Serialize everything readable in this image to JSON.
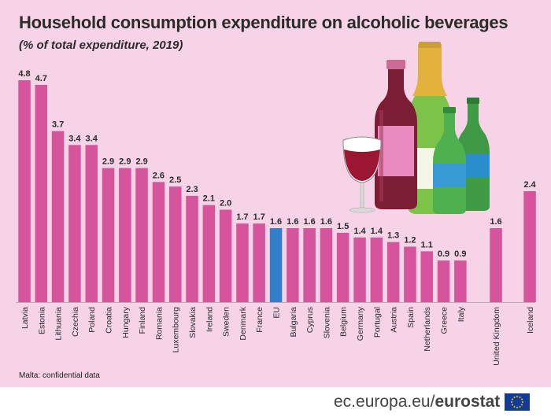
{
  "header": {
    "title": "Household consumption expenditure on alcoholic beverages",
    "subtitle": "(% of total expenditure, 2019)"
  },
  "footnote": "Malta: confidential data",
  "brand": {
    "url": "ec.europa.eu/",
    "name": "eurostat"
  },
  "colors": {
    "bar": "#d6549c",
    "bar_highlight": "#2f80c8",
    "background": "#f6d3e6",
    "text": "#2b2b2b"
  },
  "chart_data": {
    "type": "bar",
    "title": "Household consumption expenditure on alcoholic beverages",
    "subtitle": "(% of total expenditure, 2019)",
    "xlabel": "",
    "ylabel": "",
    "ylim": [
      0,
      5
    ],
    "grid": false,
    "legend": "none",
    "highlight": "EU",
    "categories": [
      "Latvia",
      "Estonia",
      "Lithuania",
      "Czechia",
      "Poland",
      "Croatia",
      "Hungary",
      "Finland",
      "Romania",
      "Luxembourg",
      "Slovakia",
      "Ireland",
      "Sweden",
      "Denmark",
      "France",
      "EU",
      "Bulgaria",
      "Cyprus",
      "Slovenia",
      "Belgium",
      "Germany",
      "Portugal",
      "Austria",
      "Spain",
      "Netherlands",
      "Greece",
      "Italy",
      "United Kingdom",
      "Iceland"
    ],
    "values": [
      4.8,
      4.7,
      3.7,
      3.4,
      3.4,
      2.9,
      2.9,
      2.9,
      2.6,
      2.5,
      2.3,
      2.1,
      2.0,
      1.7,
      1.7,
      1.6,
      1.6,
      1.6,
      1.6,
      1.5,
      1.4,
      1.4,
      1.3,
      1.2,
      1.1,
      0.9,
      0.9,
      1.6,
      2.4
    ]
  }
}
